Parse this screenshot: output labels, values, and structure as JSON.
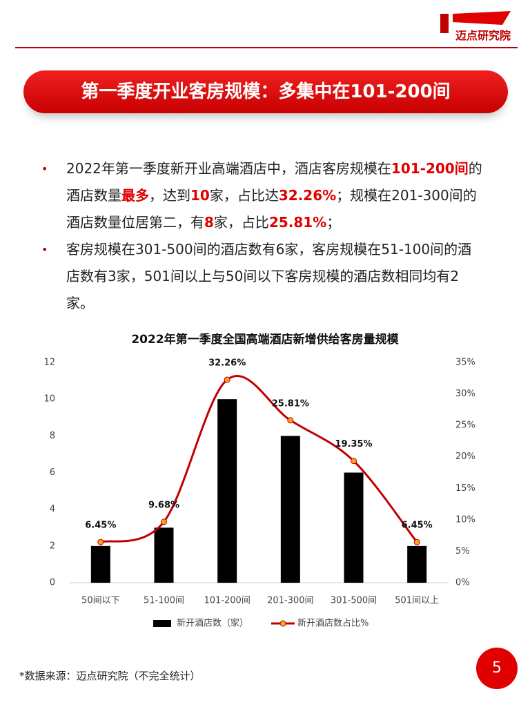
{
  "header": {
    "logo_text": "迈点研究院"
  },
  "title": "第一季度开业客房规模：多集中在101-200间",
  "bullets": [
    {
      "segments": [
        {
          "text": "2022年第一季度新开业高端酒店中，酒店客房规模在",
          "emphasis": false
        },
        {
          "text": "101-200间",
          "emphasis": true
        },
        {
          "text": "的酒店数量",
          "emphasis": false
        },
        {
          "text": "最多",
          "emphasis": true
        },
        {
          "text": "，达到",
          "emphasis": false
        },
        {
          "text": "10",
          "emphasis": true
        },
        {
          "text": "家，占比达",
          "emphasis": false
        },
        {
          "text": "32.26%",
          "emphasis": true
        },
        {
          "text": "；规模在201-300间的酒店数量位居第二，有",
          "emphasis": false
        },
        {
          "text": "8",
          "emphasis": true
        },
        {
          "text": "家，占比",
          "emphasis": false
        },
        {
          "text": "25.81%",
          "emphasis": true
        },
        {
          "text": "；",
          "emphasis": false
        }
      ]
    },
    {
      "segments": [
        {
          "text": "客房规模在301-500间的酒店数有6家，客房规模在51-100间的酒店数有3家，501间以上与50间以下客房规模的酒店数相同均有2家。",
          "emphasis": false
        }
      ]
    }
  ],
  "chart_data": {
    "type": "bar",
    "title": "2022年第一季度全国高端酒店新增供给客房量规模",
    "categories": [
      "50间以下",
      "51-100间",
      "101-200间",
      "201-300间",
      "301-500间",
      "501间以上"
    ],
    "series": [
      {
        "name": "新开酒店数（家）",
        "type": "bar",
        "color": "#000000",
        "values": [
          2,
          3,
          10,
          8,
          6,
          2
        ]
      },
      {
        "name": "新开酒店数占比%",
        "type": "line",
        "axis": "y2",
        "color": "#c00000",
        "marker_color": "#f5a623",
        "values": [
          6.45,
          9.68,
          32.26,
          25.81,
          19.35,
          6.45
        ],
        "value_labels": [
          "6.45%",
          "9.68%",
          "32.26%",
          "25.81%",
          "19.35%",
          "6.45%"
        ]
      }
    ],
    "ylim": [
      0,
      12
    ],
    "yticks": [
      0,
      2,
      4,
      6,
      8,
      10,
      12
    ],
    "y2lim": [
      0,
      35
    ],
    "y2ticks": [
      {
        "value": 0,
        "label": "0%"
      },
      {
        "value": 5,
        "label": "5%"
      },
      {
        "value": 10,
        "label": "10%"
      },
      {
        "value": 15,
        "label": "15%"
      },
      {
        "value": 20,
        "label": "20%"
      },
      {
        "value": 25,
        "label": "25%"
      },
      {
        "value": 30,
        "label": "30%"
      },
      {
        "value": 35,
        "label": "35%"
      }
    ],
    "legend": "bottom"
  },
  "footer": {
    "source": "*数据来源：迈点研究院（不完全统计）",
    "page_number": 5
  }
}
